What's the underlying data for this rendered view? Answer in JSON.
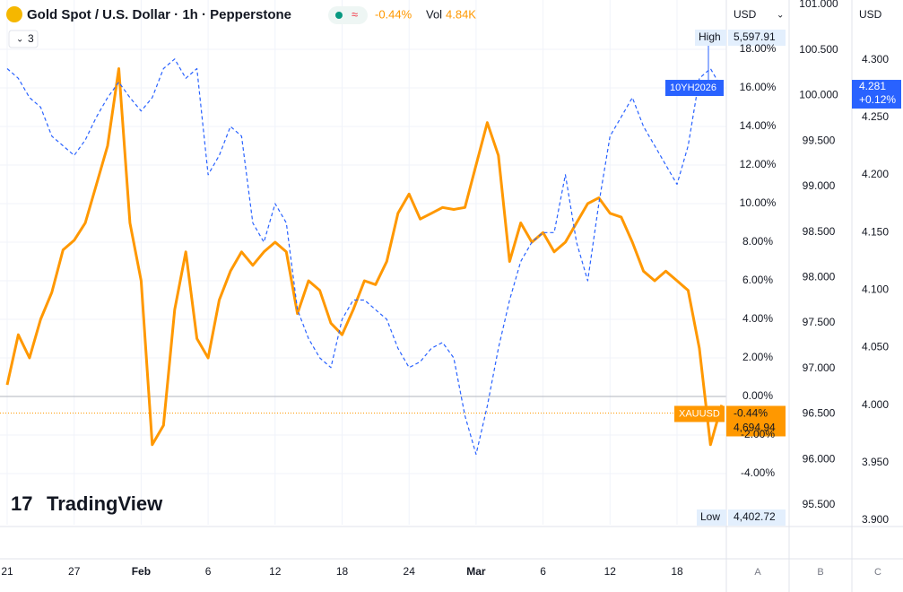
{
  "chart_data": {
    "type": "line",
    "header": {
      "title": "Gold Spot / U.S. Dollar · 1h · Pepperstone",
      "change": "-0.44%",
      "vol_label": "Vol",
      "vol": "4.84K",
      "indicators": "3"
    },
    "axis_units": [
      "USD",
      "USD"
    ],
    "tags": {
      "high_label": "High",
      "high": "5,597.91",
      "low_label": "Low",
      "low": "4,402.72",
      "yield_symbol": "10YH2026",
      "yield_price": "4.281",
      "yield_change": "+0.12%",
      "symbol": "XAUUSD",
      "symbol_change": "-0.44%",
      "symbol_price": "4,694.94"
    },
    "logo": "TradingView",
    "scale_buttons": [
      "A",
      "B",
      "C"
    ],
    "categories": [
      "21",
      null,
      null,
      null,
      null,
      null,
      "27",
      null,
      null,
      null,
      null,
      null,
      "Feb",
      null,
      null,
      null,
      null,
      null,
      "6",
      null,
      null,
      null,
      null,
      null,
      "12",
      null,
      null,
      null,
      null,
      null,
      "18",
      null,
      null,
      null,
      null,
      null,
      "24",
      null,
      null,
      null,
      null,
      null,
      "Mar",
      null,
      null,
      null,
      null,
      null,
      "6",
      null,
      null,
      null,
      null,
      null,
      "12",
      null,
      null,
      null,
      null,
      null,
      "18",
      null,
      null,
      null,
      null
    ],
    "series": [
      {
        "name": "XAUUSD",
        "color": "#ff9800",
        "values": [
          0.6,
          3.2,
          2.0,
          4.0,
          5.4,
          7.6,
          8.1,
          9.0,
          11.0,
          13.0,
          17.0,
          9.0,
          6.0,
          -2.5,
          -1.5,
          4.5,
          7.5,
          3.0,
          2.0,
          5.0,
          6.5,
          7.5,
          6.8,
          7.5,
          8.0,
          7.5,
          4.3,
          6.0,
          5.5,
          3.8,
          3.2,
          4.5,
          6.0,
          5.8,
          7.0,
          9.5,
          10.5,
          9.2,
          9.5,
          9.8,
          9.7,
          9.8,
          12.0,
          14.2,
          12.5,
          7.0,
          9.0,
          8.0,
          8.5,
          7.5,
          8.0,
          9.0,
          10.0,
          10.3,
          9.5,
          9.3,
          8.0,
          6.5,
          6.0,
          6.5,
          6.0,
          5.5,
          2.5,
          -2.5,
          -0.44
        ]
      },
      {
        "name": "10YH2026",
        "color": "#2962ff",
        "values": [
          17.0,
          16.5,
          15.5,
          15.0,
          13.5,
          13.0,
          12.5,
          13.3,
          14.5,
          15.5,
          16.3,
          15.5,
          14.8,
          15.5,
          17.0,
          17.5,
          16.5,
          17.0,
          11.5,
          12.5,
          14.0,
          13.5,
          9.0,
          8.0,
          10.0,
          9.0,
          4.5,
          3.0,
          2.0,
          1.5,
          4.0,
          5.0,
          5.0,
          4.5,
          4.0,
          2.5,
          1.5,
          1.8,
          2.5,
          2.8,
          2.0,
          -1.0,
          -3.0,
          -0.5,
          2.5,
          5.0,
          7.0,
          8.0,
          8.5,
          8.5,
          11.5,
          8.0,
          6.0,
          10.0,
          13.5,
          14.5,
          15.5,
          14.0,
          13.0,
          12.0,
          11.0,
          13.0,
          16.5,
          17.0,
          16.0
        ]
      }
    ],
    "ylim": [
      -6.65,
      20.56
    ],
    "yticks": [
      {
        "value": -4,
        "label": "-4.00%"
      },
      {
        "value": -2,
        "label": "-2.00%"
      },
      {
        "value": 0,
        "label": "0.00%"
      },
      {
        "value": 2,
        "label": "2.00%"
      },
      {
        "value": 4,
        "label": "4.00%"
      },
      {
        "value": 6,
        "label": "6.00%"
      },
      {
        "value": 8,
        "label": "8.00%"
      },
      {
        "value": 10,
        "label": "10.00%"
      },
      {
        "value": 12,
        "label": "12.00%"
      },
      {
        "value": 14,
        "label": "14.00%"
      },
      {
        "value": 16,
        "label": "16.00%"
      },
      {
        "value": 18,
        "label": "18.00%"
      }
    ],
    "y2lim": [
      95.283,
      101.049
    ],
    "y2ticks": [
      {
        "value": 95.5,
        "label": "95.500"
      },
      {
        "value": 96,
        "label": "96.000"
      },
      {
        "value": 96.5,
        "label": "96.500"
      },
      {
        "value": 97,
        "label": "97.000"
      },
      {
        "value": 97.5,
        "label": "97.500"
      },
      {
        "value": 98,
        "label": "98.000"
      },
      {
        "value": 98.5,
        "label": "98.500"
      },
      {
        "value": 99,
        "label": "99.000"
      },
      {
        "value": 99.5,
        "label": "99.500"
      },
      {
        "value": 100,
        "label": "100.000"
      },
      {
        "value": 100.5,
        "label": "100.500"
      },
      {
        "value": 101,
        "label": "101.000"
      }
    ],
    "y3lim": [
      3.896,
      4.352
    ],
    "y3ticks": [
      {
        "value": 3.9,
        "label": "3.900"
      },
      {
        "value": 3.95,
        "label": "3.950"
      },
      {
        "value": 4,
        "label": "4.000"
      },
      {
        "value": 4.05,
        "label": "4.050"
      },
      {
        "value": 4.1,
        "label": "4.100"
      },
      {
        "value": 4.15,
        "label": "4.150"
      },
      {
        "value": 4.2,
        "label": "4.200"
      },
      {
        "value": 4.25,
        "label": "4.250"
      },
      {
        "value": 4.3,
        "label": "4.300"
      }
    ],
    "grid": true
  }
}
